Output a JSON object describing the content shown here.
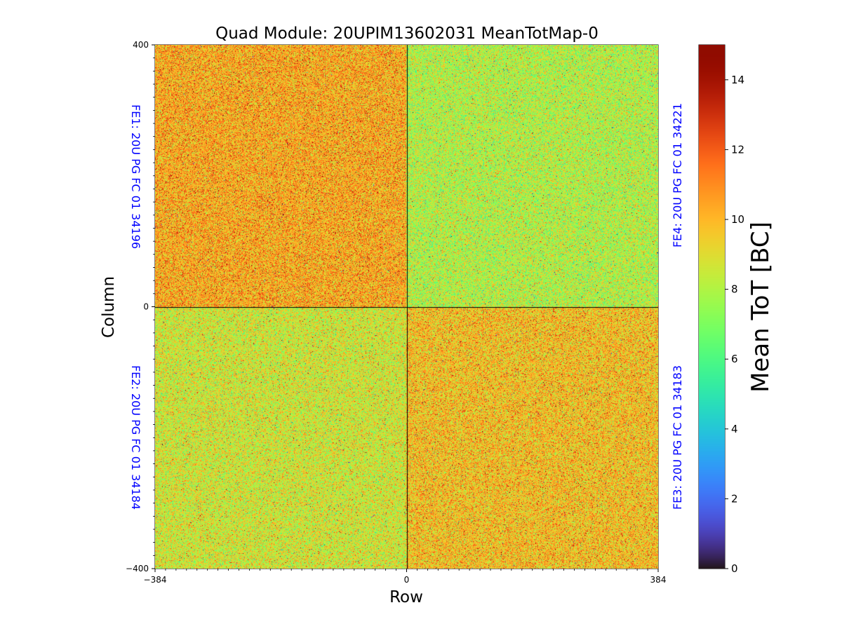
{
  "chart_data": {
    "type": "heatmap",
    "title": "Quad Module: 20UPIM13602031 MeanTotMap-0",
    "xlabel": "Row",
    "ylabel": "Column",
    "xlim": [
      -384,
      384
    ],
    "ylim": [
      -400,
      400
    ],
    "x_ticks": [
      {
        "value": -384,
        "label": "−384"
      },
      {
        "value": 0,
        "label": "0"
      },
      {
        "value": 384,
        "label": "384"
      }
    ],
    "y_ticks": [
      {
        "value": 400,
        "label": "400"
      },
      {
        "value": 0,
        "label": "0"
      },
      {
        "value": -400,
        "label": "−400"
      }
    ],
    "colorbar": {
      "label": "Mean ToT [BC]",
      "range": [
        0,
        15
      ],
      "colormap": "turbo",
      "ticks": [
        {
          "value": 0,
          "label": "0"
        },
        {
          "value": 2,
          "label": "2"
        },
        {
          "value": 4,
          "label": "4"
        },
        {
          "value": 6,
          "label": "6"
        },
        {
          "value": 8,
          "label": "8"
        },
        {
          "value": 10,
          "label": "10"
        },
        {
          "value": 12,
          "label": "12"
        },
        {
          "value": 14,
          "label": "14"
        }
      ]
    },
    "label_color": "#0000ff",
    "divider_color": "#000000",
    "quadrants": [
      {
        "id": "FE1",
        "label": "FE1: 20U PG FC 01 34196",
        "x_range": [
          -384,
          0
        ],
        "y_range": [
          0,
          400
        ],
        "approx_mean_tot": 10.3,
        "side": "left"
      },
      {
        "id": "FE2",
        "label": "FE2: 20U PG FC 01 34184",
        "x_range": [
          -384,
          0
        ],
        "y_range": [
          -400,
          0
        ],
        "approx_mean_tot": 8.6,
        "side": "left"
      },
      {
        "id": "FE3",
        "label": "FE3: 20U PG FC 01 34183",
        "x_range": [
          0,
          384
        ],
        "y_range": [
          -400,
          0
        ],
        "approx_mean_tot": 9.8,
        "side": "right"
      },
      {
        "id": "FE4",
        "label": "FE4: 20U PG FC 01 34221",
        "x_range": [
          0,
          384
        ],
        "y_range": [
          0,
          400
        ],
        "approx_mean_tot": 8.0,
        "side": "right"
      }
    ]
  }
}
